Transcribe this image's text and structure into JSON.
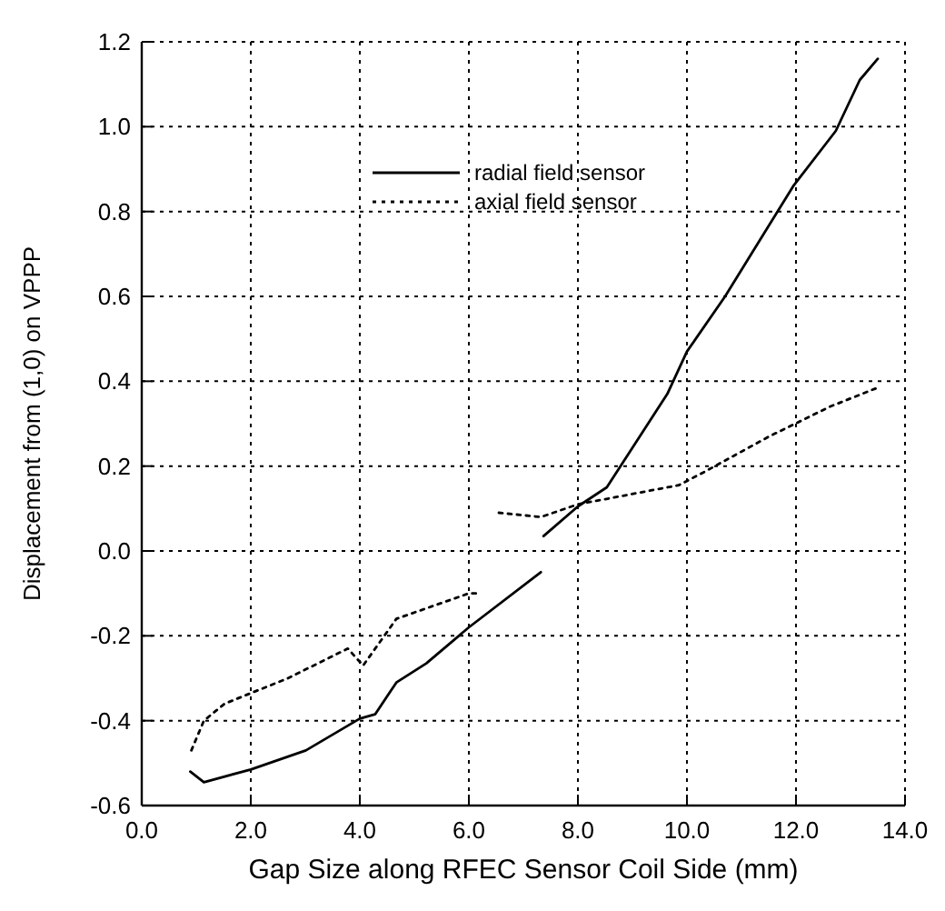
{
  "chart_data": {
    "type": "line",
    "xlabel": "Gap Size along RFEC Sensor Coil Side (mm)",
    "ylabel": "Displacement from (1,0) on VPPP",
    "xlim": [
      0,
      14
    ],
    "ylim": [
      -0.6,
      1.2
    ],
    "xticks": [
      {
        "value": 0,
        "label": "0.0"
      },
      {
        "value": 2,
        "label": "2.0"
      },
      {
        "value": 4,
        "label": "4.0"
      },
      {
        "value": 6,
        "label": "6.0"
      },
      {
        "value": 8,
        "label": "8.0"
      },
      {
        "value": 10,
        "label": "10.0"
      },
      {
        "value": 12,
        "label": "12.0"
      },
      {
        "value": 14,
        "label": "14.0"
      }
    ],
    "yticks": [
      {
        "value": -0.6,
        "label": "-0.6"
      },
      {
        "value": -0.4,
        "label": "-0.4"
      },
      {
        "value": -0.2,
        "label": "-0.2"
      },
      {
        "value": 0,
        "label": "0.0"
      },
      {
        "value": 0.2,
        "label": "0.2"
      },
      {
        "value": 0.4,
        "label": "0.4"
      },
      {
        "value": 0.6,
        "label": "0.6"
      },
      {
        "value": 0.8,
        "label": "0.8"
      },
      {
        "value": 1,
        "label": "1.0"
      },
      {
        "value": 1.2,
        "label": "1.2"
      }
    ],
    "grid": true,
    "legend": "top right",
    "marker": "none",
    "series": [
      {
        "name": "radial field sensor",
        "color": "#000000",
        "line_style": "solid",
        "x": [
          0.89,
          1.14,
          2.0,
          3.01,
          4.0,
          4.28,
          4.67,
          5.22,
          6.0,
          7.32,
          7.35,
          7.37,
          8.0,
          8.53,
          9.64,
          10.0,
          10.7,
          11.95,
          12.73,
          13.17,
          13.5
        ],
        "values": [
          -0.52,
          -0.545,
          -0.515,
          -0.47,
          -0.395,
          -0.385,
          -0.31,
          -0.265,
          -0.18,
          -0.05,
          null,
          0.035,
          0.105,
          0.15,
          0.37,
          0.47,
          0.6,
          0.86,
          0.99,
          1.11,
          1.16
        ]
      },
      {
        "name": "axial field sensor",
        "color": "#000000",
        "line_style": "dotted",
        "x": [
          0.91,
          1.14,
          1.52,
          2.68,
          3.78,
          4.06,
          4.45,
          4.67,
          6.0,
          6.2,
          6.4,
          6.55,
          7.32,
          8.0,
          9.85,
          10.3,
          11.51,
          12.62,
          13.5
        ],
        "values": [
          -0.47,
          -0.4,
          -0.36,
          -0.3,
          -0.23,
          -0.27,
          -0.2,
          -0.16,
          -0.1,
          -0.1,
          null,
          0.09,
          0.08,
          0.11,
          0.155,
          0.185,
          0.27,
          0.34,
          0.385
        ]
      }
    ]
  }
}
